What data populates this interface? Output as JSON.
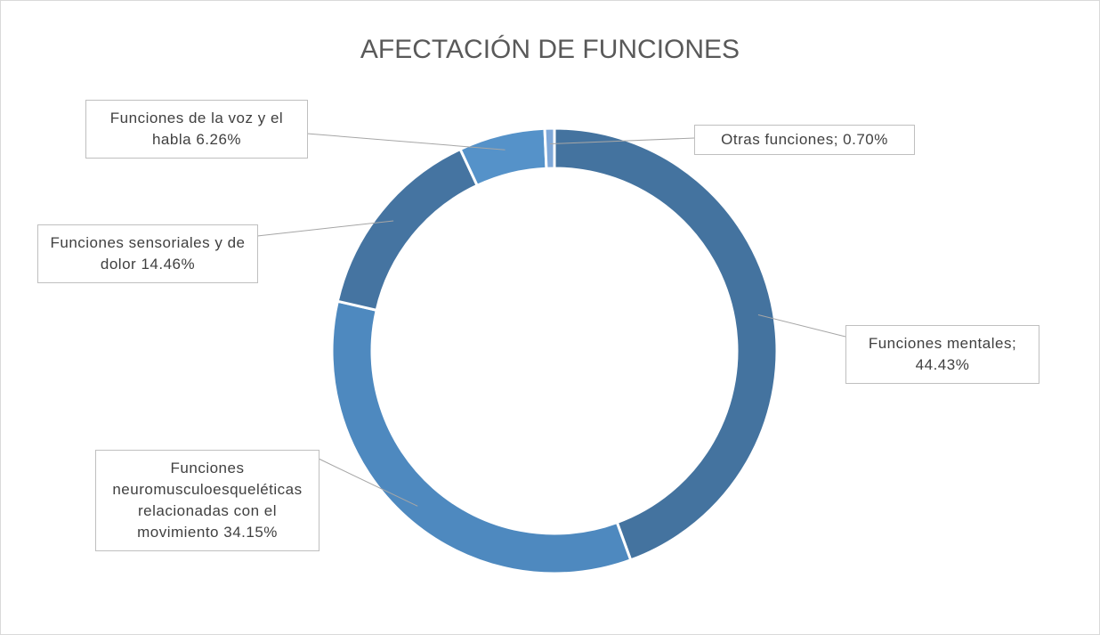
{
  "chart_data": {
    "type": "donut",
    "title": "AFECTACIÓN DE FUNCIONES",
    "categories": [
      "Funciones mentales;",
      "Funciones neuromusculoesqueléticas relacionadas con el movimiento",
      "Funciones sensoriales y de dolor",
      "Funciones de la voz y el habla",
      "Otras funciones;"
    ],
    "values": [
      44.43,
      34.15,
      14.46,
      6.26,
      0.7
    ],
    "value_labels": [
      "44.43%",
      "34.15%",
      "14.46%",
      "6.26%",
      "0.70%"
    ],
    "colors": [
      "#44739f",
      "#4e89bf",
      "#4574a1",
      "#5592c9",
      "#7fa8d8"
    ]
  }
}
